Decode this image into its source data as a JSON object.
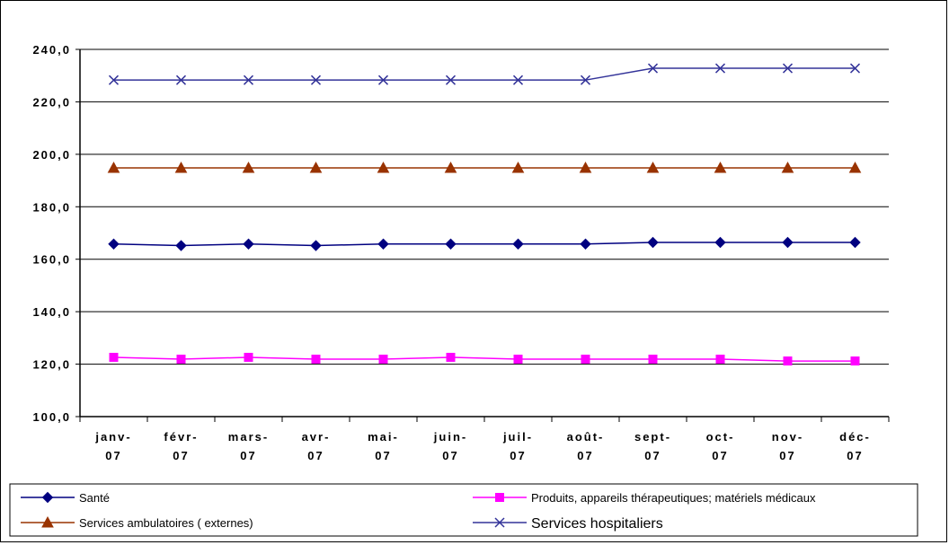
{
  "chart_data": {
    "type": "line",
    "title": "",
    "xlabel": "",
    "ylabel": "",
    "ylim": [
      100,
      240
    ],
    "y_ticks": [
      100,
      120,
      140,
      160,
      180,
      200,
      220,
      240
    ],
    "y_tick_labels": [
      "100,0",
      "120,0",
      "140,0",
      "160,0",
      "180,0",
      "200,0",
      "220,0",
      "240,0"
    ],
    "categories": [
      [
        "janv-",
        "07"
      ],
      [
        "févr-",
        "07"
      ],
      [
        "mars-",
        "07"
      ],
      [
        "avr-",
        "07"
      ],
      [
        "mai-",
        "07"
      ],
      [
        "juin-",
        "07"
      ],
      [
        "juil-",
        "07"
      ],
      [
        "août-",
        "07"
      ],
      [
        "sept-",
        "07"
      ],
      [
        "oct-",
        "07"
      ],
      [
        "nov-",
        "07"
      ],
      [
        "déc-",
        "07"
      ]
    ],
    "grid": "horizontal",
    "legend_position": "bottom",
    "series": [
      {
        "name": "Santé",
        "color": "#000080",
        "marker": "diamond",
        "values": [
          165.8,
          165.2,
          165.8,
          165.2,
          165.8,
          165.8,
          165.8,
          165.8,
          166.4,
          166.4,
          166.4,
          166.4
        ]
      },
      {
        "name": "Produits, appareils thérapeutiques; matériels médicaux",
        "color": "#FF00FF",
        "marker": "square",
        "values": [
          122.6,
          121.9,
          122.6,
          121.9,
          121.9,
          122.6,
          121.9,
          121.9,
          121.9,
          121.9,
          121.2,
          121.2
        ]
      },
      {
        "name": "Services ambulatoires ( externes)",
        "color": "#993300",
        "marker": "triangle",
        "values": [
          194.8,
          194.8,
          194.8,
          194.8,
          194.8,
          194.8,
          194.8,
          194.8,
          194.8,
          194.8,
          194.8,
          194.8
        ]
      },
      {
        "name": "Services hospitaliers",
        "color": "#333399",
        "marker": "x",
        "values": [
          228.3,
          228.3,
          228.3,
          228.3,
          228.3,
          228.3,
          228.3,
          228.3,
          232.8,
          232.8,
          232.8,
          232.8
        ]
      }
    ]
  }
}
